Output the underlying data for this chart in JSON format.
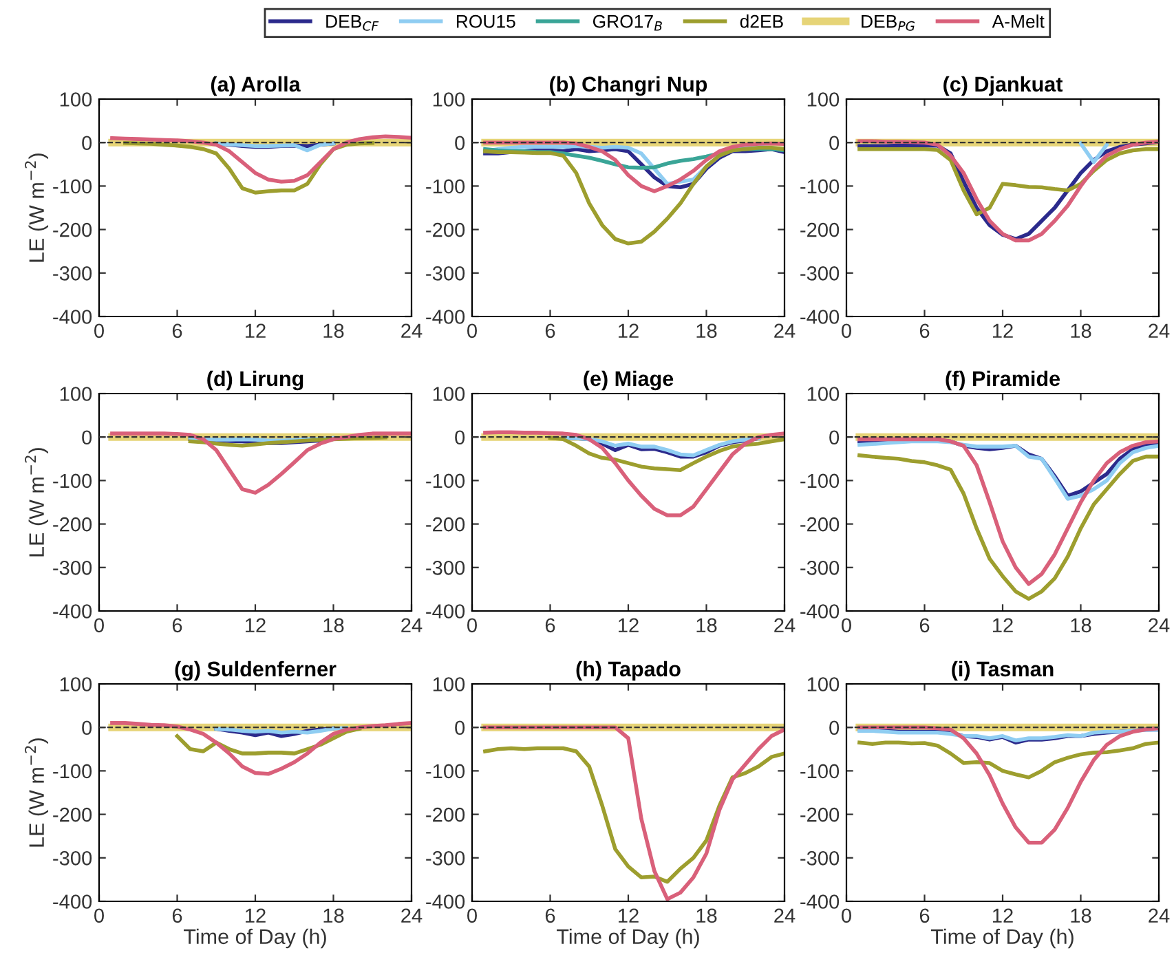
{
  "chart_data": [
    {
      "type": "line",
      "title": "(a) Arolla",
      "ylabel": "LE (W m$^{−2}$)",
      "legend": "top",
      "xlim": [
        0,
        24
      ],
      "xticks": [
        0,
        6,
        12,
        18,
        24
      ],
      "ylim": [
        -400,
        100
      ],
      "yticks": [
        -400,
        -300,
        -200,
        -100,
        0,
        100
      ],
      "ref_lines": [
        {
          "axis": "y",
          "value": 0,
          "color": "#333333",
          "line_style": "dashed"
        }
      ],
      "x": [
        1,
        2,
        3,
        4,
        5,
        6,
        7,
        8,
        9,
        10,
        11,
        12,
        13,
        14,
        15,
        16,
        17,
        18,
        19,
        20,
        21,
        22,
        23,
        24
      ],
      "series": [
        {
          "name": "DEB$_{CF}$",
          "color": "#2b2a8c",
          "values": [
            null,
            null,
            null,
            null,
            null,
            null,
            null,
            null,
            -2,
            -5,
            -8,
            -10,
            -10,
            -8,
            -7,
            -8,
            -5,
            -2,
            null,
            null,
            null,
            null,
            null,
            null
          ]
        },
        {
          "name": "ROU15",
          "color": "#8fcdf2",
          "values": [
            null,
            null,
            null,
            null,
            null,
            null,
            null,
            null,
            -2,
            -4,
            -6,
            -8,
            -8,
            -7,
            -6,
            -18,
            -5,
            -2,
            null,
            null,
            null,
            null,
            null,
            null
          ]
        },
        {
          "name": "d2EB",
          "color": "#9d9e2e",
          "values": [
            null,
            -1,
            -2,
            -3,
            -5,
            -7,
            -10,
            -15,
            -25,
            -60,
            -105,
            -115,
            -112,
            -110,
            -110,
            -95,
            -50,
            -15,
            -5,
            -2,
            -1,
            null,
            null,
            null
          ]
        },
        {
          "name": "DEB$_{PG}$",
          "color": "#e6d477",
          "values": [
            0,
            0,
            0,
            0,
            0,
            0,
            0,
            0,
            0,
            0,
            0,
            0,
            0,
            0,
            0,
            0,
            0,
            0,
            0,
            0,
            0,
            0,
            0,
            0
          ]
        },
        {
          "name": "A-Melt",
          "color": "#d9607a",
          "values": [
            10,
            9,
            8,
            7,
            6,
            5,
            3,
            0,
            -5,
            -20,
            -45,
            -70,
            -85,
            -90,
            -88,
            -75,
            -45,
            -15,
            0,
            8,
            12,
            14,
            13,
            11
          ]
        }
      ]
    },
    {
      "type": "line",
      "title": "(b) Changri Nup",
      "xlim": [
        0,
        24
      ],
      "xticks": [
        0,
        6,
        12,
        18,
        24
      ],
      "ylim": [
        -400,
        100
      ],
      "yticks": [
        -400,
        -300,
        -200,
        -100,
        0,
        100
      ],
      "ref_lines": [
        {
          "axis": "y",
          "value": 0,
          "color": "#333333",
          "line_style": "dashed"
        }
      ],
      "x": [
        1,
        2,
        3,
        4,
        5,
        6,
        7,
        8,
        9,
        10,
        11,
        12,
        13,
        14,
        15,
        16,
        17,
        18,
        19,
        20,
        21,
        22,
        23,
        24
      ],
      "series": [
        {
          "name": "DEB$_{CF}$",
          "color": "#2b2a8c",
          "values": [
            -25,
            -25,
            -22,
            -20,
            -18,
            -18,
            -20,
            -15,
            -20,
            -18,
            -15,
            -20,
            -50,
            -80,
            -100,
            -103,
            -95,
            -60,
            -35,
            -20,
            -20,
            -18,
            -15,
            -22
          ]
        },
        {
          "name": "ROU15",
          "color": "#8fcdf2",
          "values": [
            -20,
            -15,
            -12,
            -10,
            -10,
            -10,
            -10,
            -8,
            -10,
            -12,
            -10,
            -12,
            -25,
            -60,
            -95,
            -90,
            -85,
            -55,
            -30,
            -15,
            -12,
            -10,
            -12,
            -15
          ]
        },
        {
          "name": "GRO17$_{B}$",
          "color": "#3aa597",
          "values": [
            -15,
            -18,
            -20,
            -20,
            -22,
            -22,
            -25,
            -30,
            -35,
            -42,
            -50,
            -57,
            -58,
            -57,
            -48,
            -42,
            -38,
            -32,
            -25,
            -18,
            -15,
            -15,
            -15,
            -18
          ]
        },
        {
          "name": "d2EB",
          "color": "#9d9e2e",
          "values": [
            -20,
            -22,
            -22,
            -23,
            -24,
            -24,
            -30,
            -70,
            -140,
            -190,
            -222,
            -232,
            -228,
            -205,
            -175,
            -140,
            -95,
            -55,
            -30,
            -18,
            -15,
            -12,
            -12,
            -15
          ]
        },
        {
          "name": "DEB$_{PG}$",
          "color": "#e6d477",
          "values": [
            0,
            0,
            0,
            0,
            0,
            0,
            0,
            0,
            0,
            0,
            0,
            0,
            0,
            0,
            0,
            0,
            0,
            0,
            0,
            0,
            0,
            0,
            0,
            0
          ]
        },
        {
          "name": "A-Melt",
          "color": "#d9607a",
          "values": [
            0,
            0,
            0,
            0,
            0,
            0,
            0,
            -2,
            -10,
            -20,
            -40,
            -75,
            -100,
            -112,
            -100,
            -85,
            -65,
            -40,
            -20,
            -10,
            -5,
            -3,
            -2,
            -3
          ]
        }
      ]
    },
    {
      "type": "line",
      "title": "(c) Djankuat",
      "xlim": [
        0,
        24
      ],
      "xticks": [
        0,
        6,
        12,
        18,
        24
      ],
      "ylim": [
        -400,
        100
      ],
      "yticks": [
        -400,
        -300,
        -200,
        -100,
        0,
        100
      ],
      "ref_lines": [
        {
          "axis": "y",
          "value": 0,
          "color": "#333333",
          "line_style": "dashed"
        }
      ],
      "x": [
        1,
        2,
        3,
        4,
        5,
        6,
        7,
        8,
        9,
        10,
        11,
        12,
        13,
        14,
        15,
        16,
        17,
        18,
        19,
        20,
        21,
        22,
        23,
        24
      ],
      "series": [
        {
          "name": "DEB$_{CF}$",
          "color": "#2b2a8c",
          "values": [
            -8,
            -8,
            -8,
            -7,
            -7,
            -7,
            -7,
            -25,
            -90,
            -150,
            -190,
            -212,
            -222,
            -210,
            -180,
            -150,
            -110,
            -70,
            -40,
            -20,
            -10,
            -5,
            -2,
            2
          ]
        },
        {
          "name": "ROU15",
          "color": "#8fcdf2",
          "values": [
            null,
            null,
            null,
            null,
            null,
            null,
            null,
            null,
            null,
            null,
            null,
            null,
            null,
            null,
            null,
            null,
            null,
            -2,
            -45,
            -5,
            null,
            null,
            null,
            null
          ]
        },
        {
          "name": "d2EB",
          "color": "#9d9e2e",
          "values": [
            -15,
            -15,
            -15,
            -15,
            -15,
            -15,
            -17,
            -40,
            -110,
            -165,
            -150,
            -95,
            -98,
            -102,
            -103,
            -107,
            -110,
            -95,
            -65,
            -40,
            -25,
            -18,
            -15,
            -15
          ]
        },
        {
          "name": "DEB$_{PG}$",
          "color": "#e6d477",
          "values": [
            0,
            0,
            0,
            0,
            0,
            0,
            0,
            0,
            0,
            0,
            0,
            0,
            0,
            0,
            0,
            0,
            0,
            0,
            0,
            0,
            0,
            0,
            0,
            0
          ]
        },
        {
          "name": "A-Melt",
          "color": "#d9607a",
          "values": [
            3,
            3,
            2,
            2,
            1,
            0,
            -5,
            -30,
            -70,
            -130,
            -180,
            -210,
            -225,
            -225,
            -210,
            -180,
            -145,
            -100,
            -60,
            -30,
            -15,
            -5,
            0,
            2
          ]
        }
      ]
    },
    {
      "type": "line",
      "title": "(d) Lirung",
      "ylabel": "LE (W m$^{−2}$)",
      "xlim": [
        0,
        24
      ],
      "xticks": [
        0,
        6,
        12,
        18,
        24
      ],
      "ylim": [
        -400,
        100
      ],
      "yticks": [
        -400,
        -300,
        -200,
        -100,
        0,
        100
      ],
      "ref_lines": [
        {
          "axis": "y",
          "value": 0,
          "color": "#333333",
          "line_style": "dashed"
        }
      ],
      "x": [
        1,
        2,
        3,
        4,
        5,
        6,
        7,
        8,
        9,
        10,
        11,
        12,
        13,
        14,
        15,
        16,
        17,
        18,
        19,
        20,
        21,
        22,
        23,
        24
      ],
      "series": [
        {
          "name": "DEB$_{CF}$",
          "color": "#2b2a8c",
          "values": [
            null,
            null,
            null,
            null,
            null,
            null,
            -5,
            -8,
            -8,
            -9,
            -10,
            -12,
            -14,
            -14,
            -12,
            -10,
            -8,
            -5,
            -2,
            null,
            null,
            null,
            null,
            null
          ]
        },
        {
          "name": "ROU15",
          "color": "#8fcdf2",
          "values": [
            null,
            null,
            null,
            null,
            null,
            null,
            -3,
            -5,
            -6,
            -6,
            -5,
            -6,
            -8,
            -8,
            -7,
            -5,
            -4,
            -2,
            null,
            null,
            null,
            null,
            null,
            null
          ]
        },
        {
          "name": "d2EB",
          "color": "#9d9e2e",
          "values": [
            null,
            null,
            null,
            null,
            null,
            null,
            -10,
            -12,
            -15,
            -18,
            -20,
            -17,
            -14,
            -12,
            -10,
            -8,
            -6,
            -5,
            -4,
            -3,
            -2,
            -1,
            null,
            null
          ]
        },
        {
          "name": "DEB$_{PG}$",
          "color": "#e6d477",
          "values": [
            0,
            0,
            0,
            0,
            0,
            0,
            0,
            0,
            0,
            0,
            0,
            0,
            0,
            0,
            0,
            0,
            0,
            0,
            0,
            0,
            0,
            0,
            0,
            0
          ]
        },
        {
          "name": "A-Melt",
          "color": "#d9607a",
          "values": [
            8,
            8,
            8,
            8,
            8,
            7,
            5,
            -5,
            -30,
            -75,
            -120,
            -128,
            -110,
            -85,
            -58,
            -30,
            -15,
            -5,
            0,
            5,
            8,
            8,
            8,
            8
          ]
        }
      ]
    },
    {
      "type": "line",
      "title": "(e) Miage",
      "xlim": [
        0,
        24
      ],
      "xticks": [
        0,
        6,
        12,
        18,
        24
      ],
      "ylim": [
        -400,
        100
      ],
      "yticks": [
        -400,
        -300,
        -200,
        -100,
        0,
        100
      ],
      "ref_lines": [
        {
          "axis": "y",
          "value": 0,
          "color": "#333333",
          "line_style": "dashed"
        }
      ],
      "x": [
        1,
        2,
        3,
        4,
        5,
        6,
        7,
        8,
        9,
        10,
        11,
        12,
        13,
        14,
        15,
        16,
        17,
        18,
        19,
        20,
        21,
        22,
        23,
        24
      ],
      "series": [
        {
          "name": "DEB$_{CF}$",
          "color": "#2b2a8c",
          "values": [
            null,
            null,
            null,
            null,
            null,
            null,
            -2,
            -3,
            -5,
            -15,
            -30,
            -18,
            -28,
            -27,
            -35,
            -45,
            -45,
            -35,
            -20,
            -12,
            -8,
            -3,
            null,
            null
          ]
        },
        {
          "name": "ROU15",
          "color": "#8fcdf2",
          "values": [
            null,
            null,
            null,
            null,
            null,
            null,
            -2,
            -3,
            -5,
            -10,
            -20,
            -15,
            -22,
            -22,
            -30,
            -40,
            -42,
            -30,
            -18,
            -10,
            -6,
            -3,
            null,
            null
          ]
        },
        {
          "name": "d2EB",
          "color": "#9d9e2e",
          "values": [
            null,
            null,
            null,
            null,
            null,
            -2,
            -5,
            -20,
            -38,
            -48,
            -52,
            -60,
            -68,
            -72,
            -74,
            -76,
            -60,
            -45,
            -32,
            -22,
            -18,
            -15,
            -10,
            -5
          ]
        },
        {
          "name": "DEB$_{PG}$",
          "color": "#e6d477",
          "values": [
            0,
            0,
            0,
            0,
            0,
            0,
            0,
            0,
            0,
            0,
            0,
            0,
            0,
            0,
            0,
            0,
            0,
            0,
            0,
            0,
            0,
            0,
            0,
            0
          ]
        },
        {
          "name": "A-Melt",
          "color": "#d9607a",
          "values": [
            10,
            11,
            11,
            10,
            10,
            9,
            8,
            5,
            -5,
            -25,
            -60,
            -100,
            -135,
            -165,
            -180,
            -180,
            -160,
            -120,
            -80,
            -40,
            -15,
            0,
            5,
            8
          ]
        }
      ]
    },
    {
      "type": "line",
      "title": "(f) Piramide",
      "xlim": [
        0,
        24
      ],
      "xticks": [
        0,
        6,
        12,
        18,
        24
      ],
      "ylim": [
        -400,
        100
      ],
      "yticks": [
        -400,
        -300,
        -200,
        -100,
        0,
        100
      ],
      "ref_lines": [
        {
          "axis": "y",
          "value": 0,
          "color": "#333333",
          "line_style": "dashed"
        }
      ],
      "x": [
        1,
        2,
        3,
        4,
        5,
        6,
        7,
        8,
        9,
        10,
        11,
        12,
        13,
        14,
        15,
        16,
        17,
        18,
        19,
        20,
        21,
        22,
        23,
        24
      ],
      "series": [
        {
          "name": "DEB$_{CF}$",
          "color": "#2b2a8c",
          "values": [
            -12,
            -12,
            -10,
            -10,
            -8,
            -8,
            -8,
            -10,
            -20,
            -25,
            -28,
            -25,
            -20,
            -40,
            -50,
            -90,
            -135,
            -125,
            -105,
            -85,
            -50,
            -28,
            -18,
            -15
          ]
        },
        {
          "name": "ROU15",
          "color": "#8fcdf2",
          "values": [
            -18,
            -16,
            -14,
            -12,
            -10,
            -10,
            -10,
            -12,
            -18,
            -22,
            -22,
            -22,
            -20,
            -45,
            -50,
            -95,
            -142,
            -135,
            -120,
            -100,
            -60,
            -35,
            -25,
            -20
          ]
        },
        {
          "name": "d2EB",
          "color": "#9d9e2e",
          "values": [
            -42,
            -45,
            -48,
            -50,
            -55,
            -58,
            -65,
            -75,
            -130,
            -210,
            -280,
            -320,
            -355,
            -372,
            -355,
            -325,
            -275,
            -210,
            -155,
            -120,
            -85,
            -55,
            -45,
            -45
          ]
        },
        {
          "name": "DEB$_{PG}$",
          "color": "#e6d477",
          "values": [
            0,
            0,
            0,
            0,
            0,
            0,
            0,
            0,
            0,
            0,
            0,
            0,
            0,
            0,
            0,
            0,
            0,
            0,
            0,
            0,
            0,
            0,
            0,
            0
          ]
        },
        {
          "name": "A-Melt",
          "color": "#d9607a",
          "values": [
            -5,
            -5,
            -5,
            -5,
            -5,
            -5,
            -5,
            -10,
            -20,
            -65,
            -150,
            -240,
            -300,
            -338,
            -315,
            -270,
            -210,
            -150,
            -100,
            -60,
            -35,
            -20,
            -12,
            -10
          ]
        }
      ]
    },
    {
      "type": "line",
      "title": "(g) Suldenferner",
      "ylabel": "LE (W m$^{−2}$)",
      "xlabel": "Time of Day (h)",
      "xlim": [
        0,
        24
      ],
      "xticks": [
        0,
        6,
        12,
        18,
        24
      ],
      "ylim": [
        -400,
        100
      ],
      "yticks": [
        -400,
        -300,
        -200,
        -100,
        0,
        100
      ],
      "ref_lines": [
        {
          "axis": "y",
          "value": 0,
          "color": "#333333",
          "line_style": "dashed"
        }
      ],
      "x": [
        1,
        2,
        3,
        4,
        5,
        6,
        7,
        8,
        9,
        10,
        11,
        12,
        13,
        14,
        15,
        16,
        17,
        18,
        19,
        20,
        21,
        22,
        23,
        24
      ],
      "series": [
        {
          "name": "DEB$_{CF}$",
          "color": "#2b2a8c",
          "values": [
            null,
            null,
            null,
            null,
            null,
            null,
            null,
            null,
            -3,
            -8,
            -12,
            -18,
            -12,
            -20,
            -15,
            -8,
            -5,
            -2,
            null,
            null,
            null,
            null,
            null,
            null
          ]
        },
        {
          "name": "ROU15",
          "color": "#8fcdf2",
          "values": [
            null,
            null,
            null,
            null,
            null,
            null,
            null,
            null,
            -3,
            -5,
            -8,
            -10,
            -8,
            -12,
            -10,
            -12,
            -8,
            -3,
            -1,
            null,
            null,
            null,
            null,
            null
          ]
        },
        {
          "name": "d2EB",
          "color": "#9d9e2e",
          "values": [
            null,
            null,
            null,
            null,
            null,
            -20,
            -50,
            -55,
            -35,
            -50,
            -60,
            -60,
            -58,
            -58,
            -60,
            -50,
            -40,
            -25,
            -10,
            -3,
            null,
            null,
            null,
            null
          ]
        },
        {
          "name": "DEB$_{PG}$",
          "color": "#e6d477",
          "values": [
            0,
            0,
            0,
            0,
            0,
            0,
            0,
            0,
            0,
            0,
            0,
            0,
            0,
            0,
            0,
            0,
            0,
            0,
            0,
            0,
            0,
            0,
            0,
            0
          ]
        },
        {
          "name": "A-Melt",
          "color": "#d9607a",
          "values": [
            10,
            10,
            8,
            6,
            5,
            2,
            -5,
            -15,
            -35,
            -60,
            -90,
            -105,
            -107,
            -95,
            -80,
            -60,
            -35,
            -15,
            -5,
            0,
            3,
            5,
            8,
            10
          ]
        }
      ]
    },
    {
      "type": "line",
      "title": "(h) Tapado",
      "xlabel": "Time of Day (h)",
      "xlim": [
        0,
        24
      ],
      "xticks": [
        0,
        6,
        12,
        18,
        24
      ],
      "ylim": [
        -400,
        100
      ],
      "yticks": [
        -400,
        -300,
        -200,
        -100,
        0,
        100
      ],
      "ref_lines": [
        {
          "axis": "y",
          "value": 0,
          "color": "#333333",
          "line_style": "dashed"
        }
      ],
      "x": [
        1,
        2,
        3,
        4,
        5,
        6,
        7,
        8,
        9,
        10,
        11,
        12,
        13,
        14,
        15,
        16,
        17,
        18,
        19,
        20,
        21,
        22,
        23,
        24
      ],
      "series": [
        {
          "name": "d2EB",
          "color": "#9d9e2e",
          "values": [
            -55,
            -50,
            -48,
            -50,
            -48,
            -48,
            -48,
            -55,
            -90,
            -180,
            -280,
            -320,
            -345,
            -343,
            -355,
            -325,
            -300,
            -260,
            -180,
            -115,
            -105,
            -90,
            -68,
            -60
          ]
        },
        {
          "name": "DEB$_{PG}$",
          "color": "#e6d477",
          "values": [
            0,
            0,
            0,
            0,
            0,
            0,
            0,
            0,
            0,
            0,
            0,
            0,
            0,
            0,
            0,
            0,
            0,
            0,
            0,
            0,
            0,
            0,
            0,
            0
          ]
        },
        {
          "name": "A-Melt",
          "color": "#d9607a",
          "values": [
            0,
            0,
            0,
            0,
            0,
            0,
            0,
            0,
            0,
            0,
            0,
            -25,
            -210,
            -330,
            -395,
            -380,
            -345,
            -290,
            -190,
            -120,
            -85,
            -50,
            -20,
            -5
          ]
        }
      ]
    },
    {
      "type": "line",
      "title": "(i) Tasman",
      "xlabel": "Time of Day (h)",
      "xlim": [
        0,
        24
      ],
      "xticks": [
        0,
        6,
        12,
        18,
        24
      ],
      "ylim": [
        -400,
        100
      ],
      "yticks": [
        -400,
        -300,
        -200,
        -100,
        0,
        100
      ],
      "ref_lines": [
        {
          "axis": "y",
          "value": 0,
          "color": "#333333",
          "line_style": "dashed"
        }
      ],
      "x": [
        1,
        2,
        3,
        4,
        5,
        6,
        7,
        8,
        9,
        10,
        11,
        12,
        13,
        14,
        15,
        16,
        17,
        18,
        19,
        20,
        21,
        22,
        23,
        24
      ],
      "series": [
        {
          "name": "DEB$_{CF}$",
          "color": "#2b2a8c",
          "values": [
            -5,
            -6,
            -8,
            -10,
            -10,
            -10,
            -10,
            -12,
            -20,
            -22,
            -28,
            -22,
            -35,
            -28,
            -28,
            -25,
            -20,
            -20,
            -15,
            -12,
            -10,
            -8,
            -5,
            -5
          ]
        },
        {
          "name": "ROU15",
          "color": "#8fcdf2",
          "values": [
            -8,
            -8,
            -10,
            -12,
            -12,
            -12,
            -12,
            -15,
            -20,
            -20,
            -25,
            -20,
            -30,
            -25,
            -25,
            -22,
            -18,
            -20,
            -12,
            -10,
            -10,
            -8,
            -6,
            -5
          ]
        },
        {
          "name": "d2EB",
          "color": "#9d9e2e",
          "values": [
            -35,
            -38,
            -35,
            -35,
            -37,
            -36,
            -42,
            -60,
            -82,
            -80,
            -82,
            -100,
            -108,
            -115,
            -100,
            -80,
            -70,
            -62,
            -58,
            -57,
            -53,
            -48,
            -38,
            -35
          ]
        },
        {
          "name": "DEB$_{PG}$",
          "color": "#e6d477",
          "values": [
            0,
            0,
            0,
            0,
            0,
            0,
            0,
            0,
            0,
            0,
            0,
            0,
            0,
            0,
            0,
            0,
            0,
            0,
            0,
            0,
            0,
            0,
            0,
            0
          ]
        },
        {
          "name": "A-Melt",
          "color": "#d9607a",
          "values": [
            0,
            0,
            0,
            0,
            0,
            0,
            -2,
            -5,
            -25,
            -60,
            -110,
            -175,
            -230,
            -265,
            -265,
            -235,
            -185,
            -125,
            -75,
            -40,
            -20,
            -10,
            -5,
            -2
          ]
        }
      ]
    }
  ]
}
